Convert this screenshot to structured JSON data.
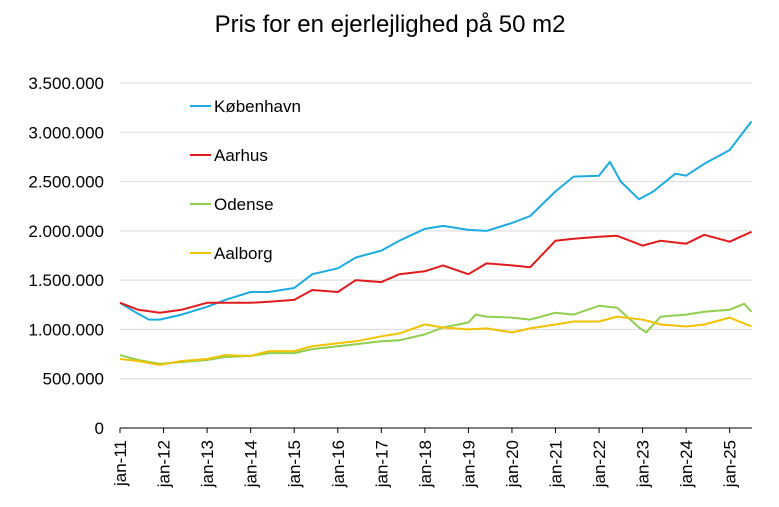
{
  "chart_data": {
    "type": "line",
    "title": "Pris for en ejerlejlighed på 50 m2",
    "xlabel": "",
    "ylabel": "",
    "ylim": [
      0,
      3500000
    ],
    "yticks": [
      "0",
      "500.000",
      "1.000.000",
      "1.500.000",
      "2.000.000",
      "2.500.000",
      "3.000.000",
      "3.500.000"
    ],
    "xticks": [
      "jan-11",
      "jan-12",
      "jan-13",
      "jan-14",
      "jan-15",
      "jan-16",
      "jan-17",
      "jan-18",
      "jan-19",
      "jan-20",
      "jan-21",
      "jan-22",
      "jan-23",
      "jan-24",
      "jan-25"
    ],
    "grid": "horizontal",
    "legend_position": "top-left",
    "series": [
      {
        "name": "København",
        "color": "#1aabe3",
        "points": [
          [
            "2011-01",
            1270000
          ],
          [
            "2011-05",
            1180000
          ],
          [
            "2011-09",
            1100000
          ],
          [
            "2011-12",
            1100000
          ],
          [
            "2012-06",
            1150000
          ],
          [
            "2013-01",
            1230000
          ],
          [
            "2013-06",
            1300000
          ],
          [
            "2014-01",
            1380000
          ],
          [
            "2014-06",
            1380000
          ],
          [
            "2015-01",
            1420000
          ],
          [
            "2015-06",
            1560000
          ],
          [
            "2016-01",
            1620000
          ],
          [
            "2016-06",
            1730000
          ],
          [
            "2017-01",
            1800000
          ],
          [
            "2017-06",
            1900000
          ],
          [
            "2018-01",
            2020000
          ],
          [
            "2018-06",
            2050000
          ],
          [
            "2019-01",
            2010000
          ],
          [
            "2019-06",
            2000000
          ],
          [
            "2020-01",
            2080000
          ],
          [
            "2020-06",
            2150000
          ],
          [
            "2021-01",
            2400000
          ],
          [
            "2021-06",
            2550000
          ],
          [
            "2022-01",
            2560000
          ],
          [
            "2022-04",
            2700000
          ],
          [
            "2022-07",
            2500000
          ],
          [
            "2022-12",
            2320000
          ],
          [
            "2023-04",
            2400000
          ],
          [
            "2023-10",
            2580000
          ],
          [
            "2024-01",
            2560000
          ],
          [
            "2024-06",
            2680000
          ],
          [
            "2025-01",
            2820000
          ],
          [
            "2025-07",
            3110000
          ]
        ]
      },
      {
        "name": "Aarhus",
        "color": "#e11b1b",
        "points": [
          [
            "2011-01",
            1270000
          ],
          [
            "2011-06",
            1200000
          ],
          [
            "2011-12",
            1170000
          ],
          [
            "2012-06",
            1200000
          ],
          [
            "2013-01",
            1270000
          ],
          [
            "2013-06",
            1270000
          ],
          [
            "2014-01",
            1270000
          ],
          [
            "2014-06",
            1280000
          ],
          [
            "2015-01",
            1300000
          ],
          [
            "2015-06",
            1400000
          ],
          [
            "2016-01",
            1380000
          ],
          [
            "2016-06",
            1500000
          ],
          [
            "2017-01",
            1480000
          ],
          [
            "2017-06",
            1560000
          ],
          [
            "2018-01",
            1590000
          ],
          [
            "2018-06",
            1650000
          ],
          [
            "2019-01",
            1560000
          ],
          [
            "2019-06",
            1670000
          ],
          [
            "2020-01",
            1650000
          ],
          [
            "2020-06",
            1630000
          ],
          [
            "2021-01",
            1900000
          ],
          [
            "2021-06",
            1920000
          ],
          [
            "2022-01",
            1940000
          ],
          [
            "2022-06",
            1950000
          ],
          [
            "2023-01",
            1850000
          ],
          [
            "2023-06",
            1900000
          ],
          [
            "2024-01",
            1870000
          ],
          [
            "2024-06",
            1960000
          ],
          [
            "2025-01",
            1890000
          ],
          [
            "2025-07",
            1990000
          ]
        ]
      },
      {
        "name": "Odense",
        "color": "#8fcf4f",
        "points": [
          [
            "2011-01",
            740000
          ],
          [
            "2011-06",
            690000
          ],
          [
            "2011-12",
            650000
          ],
          [
            "2012-06",
            670000
          ],
          [
            "2013-01",
            690000
          ],
          [
            "2013-06",
            720000
          ],
          [
            "2014-01",
            730000
          ],
          [
            "2014-06",
            760000
          ],
          [
            "2015-01",
            760000
          ],
          [
            "2015-06",
            800000
          ],
          [
            "2016-01",
            830000
          ],
          [
            "2016-06",
            850000
          ],
          [
            "2017-01",
            880000
          ],
          [
            "2017-06",
            890000
          ],
          [
            "2018-01",
            950000
          ],
          [
            "2018-06",
            1020000
          ],
          [
            "2019-01",
            1070000
          ],
          [
            "2019-03",
            1150000
          ],
          [
            "2019-06",
            1130000
          ],
          [
            "2020-01",
            1120000
          ],
          [
            "2020-06",
            1100000
          ],
          [
            "2021-01",
            1170000
          ],
          [
            "2021-06",
            1150000
          ],
          [
            "2022-01",
            1240000
          ],
          [
            "2022-06",
            1220000
          ],
          [
            "2022-12",
            1020000
          ],
          [
            "2023-02",
            970000
          ],
          [
            "2023-06",
            1130000
          ],
          [
            "2024-01",
            1150000
          ],
          [
            "2024-06",
            1180000
          ],
          [
            "2025-01",
            1200000
          ],
          [
            "2025-05",
            1260000
          ],
          [
            "2025-07",
            1180000
          ]
        ]
      },
      {
        "name": "Aalborg",
        "color": "#f2c200",
        "points": [
          [
            "2011-01",
            700000
          ],
          [
            "2011-06",
            680000
          ],
          [
            "2011-12",
            640000
          ],
          [
            "2012-06",
            680000
          ],
          [
            "2013-01",
            700000
          ],
          [
            "2013-06",
            740000
          ],
          [
            "2014-01",
            730000
          ],
          [
            "2014-06",
            780000
          ],
          [
            "2015-01",
            780000
          ],
          [
            "2015-06",
            830000
          ],
          [
            "2016-01",
            860000
          ],
          [
            "2016-06",
            880000
          ],
          [
            "2017-01",
            930000
          ],
          [
            "2017-06",
            960000
          ],
          [
            "2018-01",
            1050000
          ],
          [
            "2018-06",
            1020000
          ],
          [
            "2019-01",
            1000000
          ],
          [
            "2019-06",
            1010000
          ],
          [
            "2020-01",
            970000
          ],
          [
            "2020-06",
            1010000
          ],
          [
            "2021-01",
            1050000
          ],
          [
            "2021-06",
            1080000
          ],
          [
            "2022-01",
            1080000
          ],
          [
            "2022-06",
            1130000
          ],
          [
            "2023-01",
            1100000
          ],
          [
            "2023-06",
            1050000
          ],
          [
            "2024-01",
            1030000
          ],
          [
            "2024-06",
            1050000
          ],
          [
            "2025-01",
            1120000
          ],
          [
            "2025-05",
            1060000
          ],
          [
            "2025-07",
            1030000
          ]
        ]
      }
    ]
  }
}
